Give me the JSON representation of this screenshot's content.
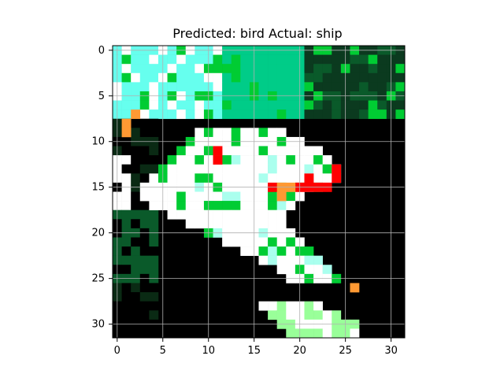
{
  "figure": {
    "title": "Predicted: bird Actual: ship"
  },
  "chart_data": {
    "type": "heatmap",
    "title": "Predicted: bird Actual: ship",
    "image_size": [
      32,
      32
    ],
    "xlim": [
      -0.5,
      31.5
    ],
    "ylim": [
      31.5,
      -0.5
    ],
    "x_ticks": [
      0,
      5,
      10,
      15,
      20,
      25,
      30
    ],
    "y_ticks": [
      0,
      5,
      10,
      15,
      20,
      25,
      30
    ],
    "grid": true,
    "colors": {
      "background": "#000000",
      "white": "#ffffff",
      "teal": "#00cc88",
      "green": "#00cc33",
      "dark_green": "#0a5a2a",
      "red": "#ff0000",
      "orange": "#ff9933"
    }
  }
}
